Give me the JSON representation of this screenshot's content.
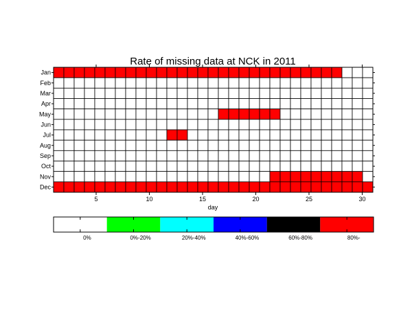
{
  "chart_data": {
    "type": "heatmap",
    "title": "Rate of missing data at NCK in 2011",
    "xlabel": "day",
    "ylabel": "",
    "x": [
      1,
      2,
      3,
      4,
      5,
      6,
      7,
      8,
      9,
      10,
      11,
      12,
      13,
      14,
      15,
      16,
      17,
      18,
      19,
      20,
      21,
      22,
      23,
      24,
      25,
      26,
      27,
      28,
      29,
      30,
      31
    ],
    "x_ticks": [
      5,
      10,
      15,
      20,
      25,
      30
    ],
    "xlim": [
      1,
      31
    ],
    "months": [
      "Jan",
      "Feb",
      "Mar",
      "Apr",
      "May",
      "Jun",
      "Jul",
      "Aug",
      "Sep",
      "Oct",
      "Nov",
      "Dec"
    ],
    "values": [
      [
        5,
        5,
        5,
        5,
        5,
        5,
        5,
        5,
        5,
        5,
        5,
        5,
        5,
        5,
        5,
        5,
        5,
        5,
        5,
        5,
        5,
        5,
        5,
        5,
        5,
        5,
        5,
        5,
        0,
        0,
        0
      ],
      [
        0,
        0,
        0,
        0,
        0,
        0,
        0,
        0,
        0,
        0,
        0,
        0,
        0,
        0,
        0,
        0,
        0,
        0,
        0,
        0,
        0,
        0,
        0,
        0,
        0,
        0,
        0,
        0,
        0,
        0,
        0
      ],
      [
        0,
        0,
        0,
        0,
        0,
        0,
        0,
        0,
        0,
        0,
        0,
        0,
        0,
        0,
        0,
        0,
        0,
        0,
        0,
        0,
        0,
        0,
        0,
        0,
        0,
        0,
        0,
        0,
        0,
        0,
        0
      ],
      [
        0,
        0,
        0,
        0,
        0,
        0,
        0,
        0,
        0,
        0,
        0,
        0,
        0,
        0,
        0,
        0,
        0,
        0,
        0,
        0,
        0,
        0,
        0,
        0,
        0,
        0,
        0,
        0,
        0,
        0,
        0
      ],
      [
        0,
        0,
        0,
        0,
        0,
        0,
        0,
        0,
        0,
        0,
        0,
        0,
        0,
        0,
        0,
        0,
        5,
        5,
        5,
        5,
        5,
        5,
        0,
        0,
        0,
        0,
        0,
        0,
        0,
        0,
        0
      ],
      [
        0,
        0,
        0,
        0,
        0,
        0,
        0,
        0,
        0,
        0,
        0,
        0,
        0,
        0,
        0,
        0,
        0,
        0,
        0,
        0,
        0,
        0,
        0,
        0,
        0,
        0,
        0,
        0,
        0,
        0,
        0
      ],
      [
        0,
        0,
        0,
        0,
        0,
        0,
        0,
        0,
        0,
        0,
        0,
        5,
        5,
        0,
        0,
        0,
        0,
        0,
        0,
        0,
        0,
        0,
        0,
        0,
        0,
        0,
        0,
        0,
        0,
        0,
        0
      ],
      [
        0,
        0,
        0,
        0,
        0,
        0,
        0,
        0,
        0,
        0,
        0,
        0,
        0,
        0,
        0,
        0,
        0,
        0,
        0,
        0,
        0,
        0,
        0,
        0,
        0,
        0,
        0,
        0,
        0,
        0,
        0
      ],
      [
        0,
        0,
        0,
        0,
        0,
        0,
        0,
        0,
        0,
        0,
        0,
        0,
        0,
        0,
        0,
        0,
        0,
        0,
        0,
        0,
        0,
        0,
        0,
        0,
        0,
        0,
        0,
        0,
        0,
        0,
        0
      ],
      [
        0,
        0,
        0,
        0,
        0,
        0,
        0,
        0,
        0,
        0,
        0,
        0,
        0,
        0,
        0,
        0,
        0,
        0,
        0,
        0,
        0,
        0,
        0,
        0,
        0,
        0,
        0,
        0,
        0,
        0,
        0
      ],
      [
        0,
        0,
        0,
        0,
        0,
        0,
        0,
        0,
        0,
        0,
        0,
        0,
        0,
        0,
        0,
        0,
        0,
        0,
        0,
        0,
        0,
        5,
        5,
        5,
        5,
        5,
        5,
        5,
        5,
        5,
        0
      ],
      [
        5,
        5,
        5,
        5,
        5,
        5,
        5,
        5,
        5,
        5,
        5,
        5,
        5,
        5,
        5,
        5,
        5,
        5,
        5,
        5,
        5,
        5,
        5,
        5,
        5,
        5,
        5,
        5,
        5,
        5,
        5
      ]
    ],
    "value_note": "values are color-class indices into legend (0 = 0%, 5 = 80%-)",
    "grid": true,
    "legend": {
      "placement": "bottom",
      "classes": [
        {
          "label": "0%",
          "color": "#ffffff"
        },
        {
          "label": "0%-20%",
          "color": "#00ff00"
        },
        {
          "label": "20%-40%",
          "color": "#00ffff"
        },
        {
          "label": "40%-60%",
          "color": "#0000ff"
        },
        {
          "label": "60%-80%",
          "color": "#000000"
        },
        {
          "label": "80%-",
          "color": "#ff0000"
        }
      ]
    }
  }
}
